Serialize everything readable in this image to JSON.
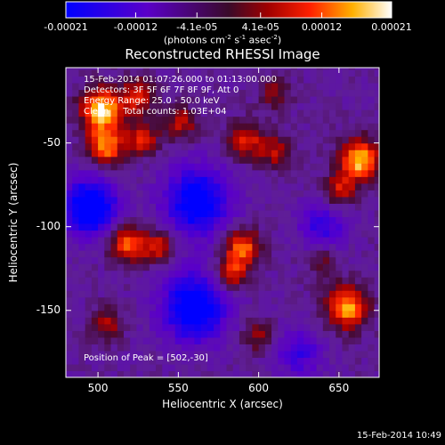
{
  "colorbar": {
    "tick_labels": [
      "-0.00021",
      "-0.00012",
      "-4.1e-05",
      "4.1e-05",
      "0.00012",
      "0.00021"
    ],
    "range": [
      -0.00021,
      0.00021
    ],
    "units_label_parts": [
      "(photons cm",
      "-2",
      " s",
      "-1",
      " asec",
      "-2",
      ")"
    ]
  },
  "chart_data": {
    "type": "heatmap",
    "title": "Reconstructed RHESSI Image",
    "xlabel": "Heliocentric X (arcsec)",
    "ylabel": "Heliocentric Y (arcsec)",
    "xlim": [
      480,
      675
    ],
    "ylim": [
      -190,
      -5
    ],
    "x_ticks": [
      500,
      550,
      600,
      650
    ],
    "y_ticks": [
      -50,
      -100,
      -150
    ],
    "colormap": "blue-purple-red-yellow-white",
    "annotations": [
      "15-Feb-2014 01:07:26.000 to 01:13:00.000",
      "Detectors: 3F 5F 6F 7F 8F 9F, Att 0",
      "Energy Range: 25.0 - 50.0 keV",
      "Clean     Total counts: 1.03E+04"
    ],
    "peak_label": "Position of Peak = [502,-30]",
    "peak_position": [
      502,
      -30
    ],
    "sources": [
      {
        "x": 502,
        "y": -30,
        "amp": 1.0,
        "r": 9
      },
      {
        "x": 525,
        "y": -22,
        "amp": 0.55,
        "r": 8
      },
      {
        "x": 505,
        "y": -52,
        "amp": 0.8,
        "r": 8
      },
      {
        "x": 528,
        "y": -47,
        "amp": 0.6,
        "r": 7
      },
      {
        "x": 552,
        "y": -38,
        "amp": 0.5,
        "r": 7
      },
      {
        "x": 592,
        "y": -48,
        "amp": 0.55,
        "r": 8
      },
      {
        "x": 610,
        "y": -55,
        "amp": 0.45,
        "r": 7
      },
      {
        "x": 663,
        "y": -60,
        "amp": 0.95,
        "r": 9
      },
      {
        "x": 650,
        "y": -78,
        "amp": 0.5,
        "r": 7
      },
      {
        "x": 518,
        "y": -110,
        "amp": 0.75,
        "r": 8
      },
      {
        "x": 538,
        "y": -112,
        "amp": 0.55,
        "r": 7
      },
      {
        "x": 590,
        "y": -112,
        "amp": 0.75,
        "r": 8
      },
      {
        "x": 583,
        "y": -128,
        "amp": 0.6,
        "r": 7
      },
      {
        "x": 655,
        "y": -148,
        "amp": 0.9,
        "r": 9
      },
      {
        "x": 505,
        "y": -158,
        "amp": 0.45,
        "r": 7
      },
      {
        "x": 600,
        "y": -165,
        "amp": 0.4,
        "r": 7
      },
      {
        "x": 640,
        "y": -120,
        "amp": 0.35,
        "r": 7
      },
      {
        "x": 610,
        "y": -20,
        "amp": 0.35,
        "r": 7
      }
    ],
    "negatives": [
      {
        "x": 495,
        "y": -88,
        "amp": -1.0,
        "r": 12
      },
      {
        "x": 562,
        "y": -85,
        "amp": -0.9,
        "r": 14
      },
      {
        "x": 560,
        "y": -148,
        "amp": -0.95,
        "r": 14
      },
      {
        "x": 640,
        "y": -100,
        "amp": -0.5,
        "r": 10
      },
      {
        "x": 625,
        "y": -175,
        "amp": -0.45,
        "r": 10
      }
    ]
  },
  "footer": {
    "timestamp": "15-Feb-2014 10:49"
  }
}
